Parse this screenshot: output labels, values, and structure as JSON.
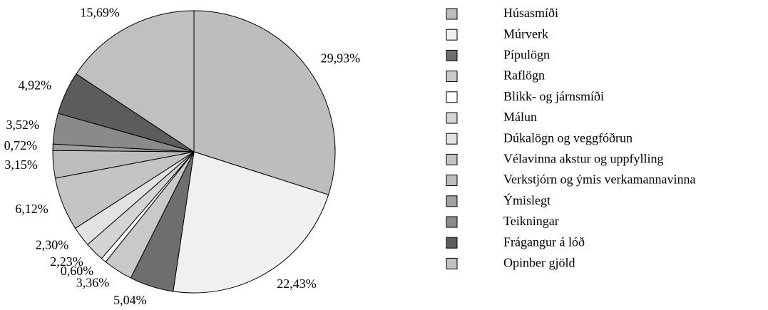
{
  "chart_data": {
    "type": "pie",
    "categories": [
      "Húsasmíði",
      "Múrverk",
      "Pípulögn",
      "Raflögn",
      "Blikk- og járnsmíði",
      "Málun",
      "Dúkalögn og veggfóðrun",
      "Vélavinna akstur og  uppfylling",
      "Verkstjórn og ýmis verkamannavinna",
      "Ýmislegt",
      "Teikningar",
      "Frágangur á lóð",
      "Opinber gjöld"
    ],
    "values": [
      29.93,
      22.43,
      5.04,
      3.36,
      0.6,
      2.23,
      2.3,
      6.12,
      3.15,
      0.72,
      3.52,
      4.92,
      15.69
    ],
    "value_labels": [
      "29,93%",
      "22,43%",
      "5,04%",
      "3,36%",
      "0,60%",
      "2,23%",
      "2,30%",
      "6,12%",
      "3,15%",
      "0,72%",
      "3,52%",
      "4,92%",
      "15,69%"
    ],
    "colors": [
      "#bdbdbd",
      "#f0f0f0",
      "#6e6e6e",
      "#c9c9c9",
      "#ffffff",
      "#d4d4d4",
      "#e2e2e2",
      "#c4c4c4",
      "#bcbcbc",
      "#a0a0a0",
      "#8a8a8a",
      "#5c5c5c",
      "#c0c0c0"
    ],
    "legend": "right"
  }
}
